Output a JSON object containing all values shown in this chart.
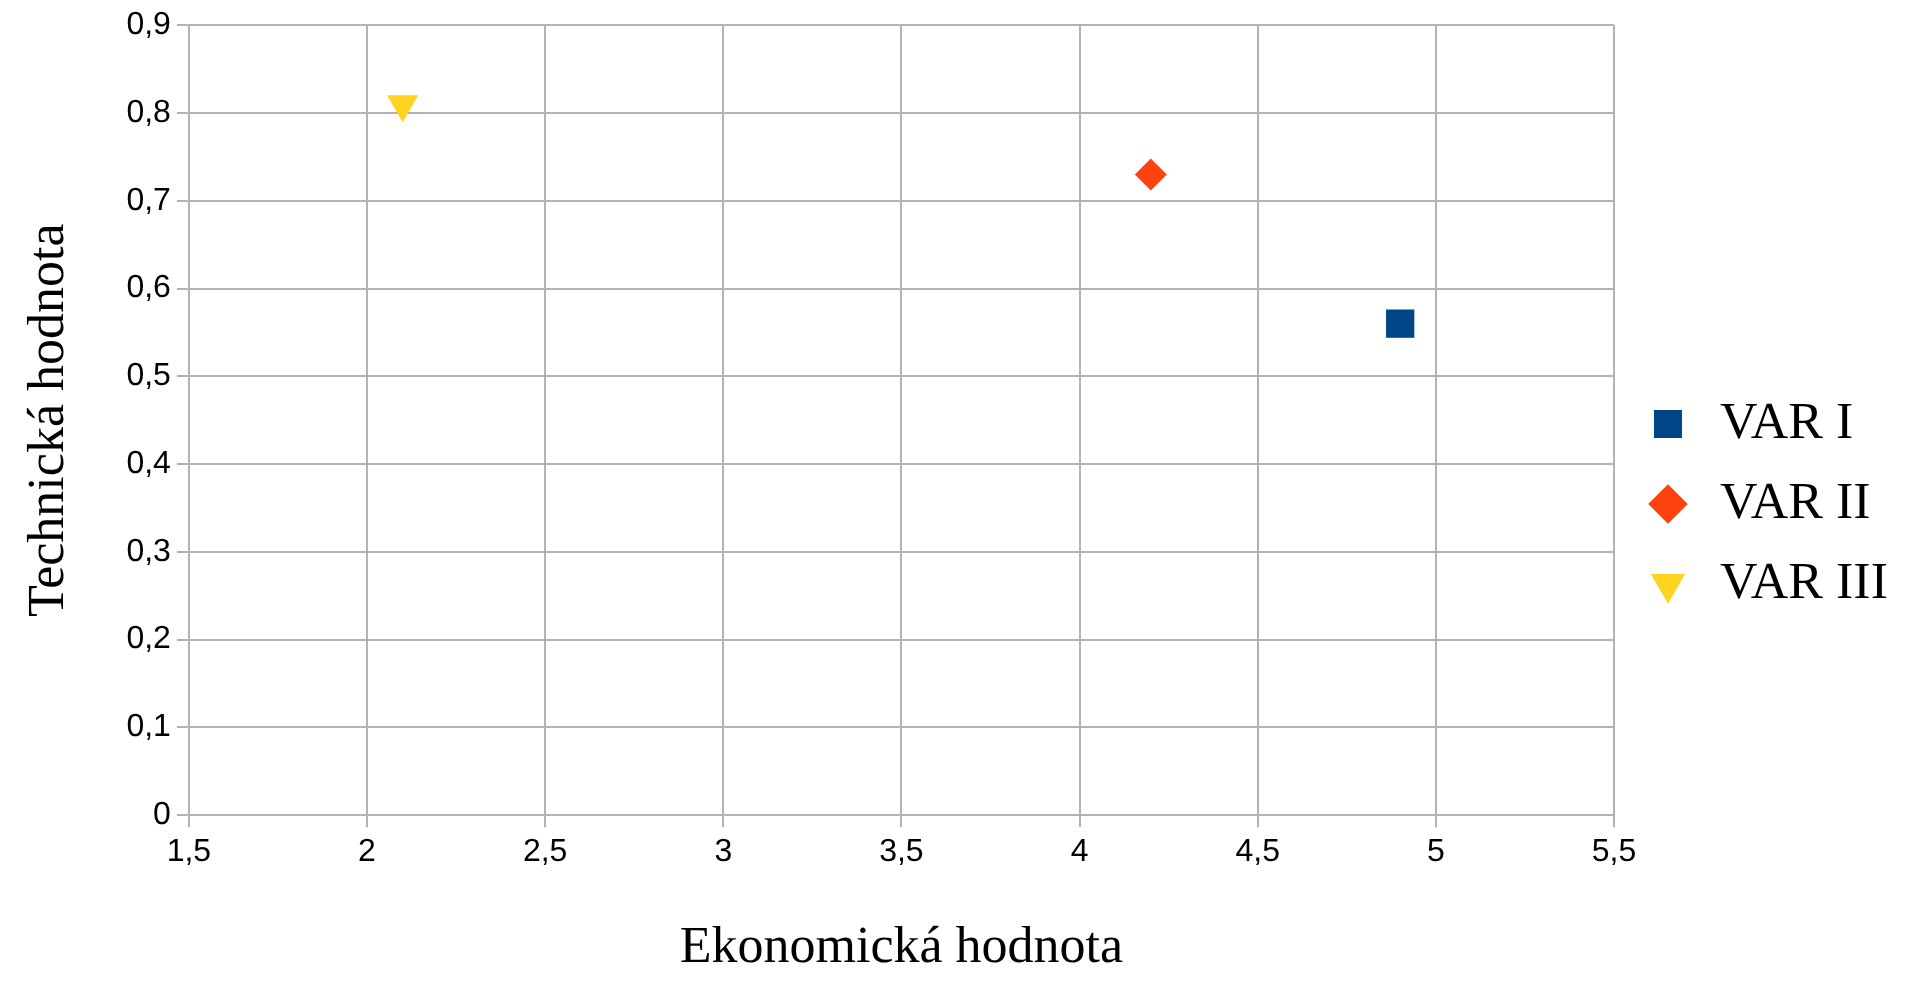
{
  "chart_data": {
    "type": "scatter",
    "xlabel": "Ekonomická hodnota",
    "ylabel": "Technická hodnota",
    "xlim": [
      1.5,
      5.5
    ],
    "xticks": [
      {
        "value": 1.5,
        "label": "1,5"
      },
      2,
      {
        "value": 2.5,
        "label": "2,5"
      },
      3,
      {
        "value": 3.5,
        "label": "3,5"
      },
      4,
      {
        "value": 4.5,
        "label": "4,5"
      },
      5,
      {
        "value": 5.5,
        "label": "5,5"
      }
    ],
    "ylim": [
      0,
      0.9
    ],
    "yticks": [
      0,
      {
        "value": 0.1,
        "label": "0,1"
      },
      {
        "value": 0.2,
        "label": "0,2"
      },
      {
        "value": 0.3,
        "label": "0,3"
      },
      {
        "value": 0.4,
        "label": "0,4"
      },
      {
        "value": 0.5,
        "label": "0,5"
      },
      {
        "value": 0.6,
        "label": "0,6"
      },
      {
        "value": 0.7,
        "label": "0,7"
      },
      {
        "value": 0.8,
        "label": "0,8"
      },
      {
        "value": 0.9,
        "label": "0,9"
      }
    ],
    "grid": true,
    "legend": "right",
    "series": [
      {
        "name": "VAR I",
        "color": "#004586",
        "marker": "square",
        "x": [
          4.9
        ],
        "values": [
          0.56
        ]
      },
      {
        "name": "VAR II",
        "color": "#ff420e",
        "marker": "diamond",
        "x": [
          4.2
        ],
        "values": [
          0.73
        ]
      },
      {
        "name": "VAR III",
        "color": "#ffd320",
        "marker": "triangle",
        "x": [
          2.1
        ],
        "values": [
          0.81
        ]
      }
    ]
  }
}
